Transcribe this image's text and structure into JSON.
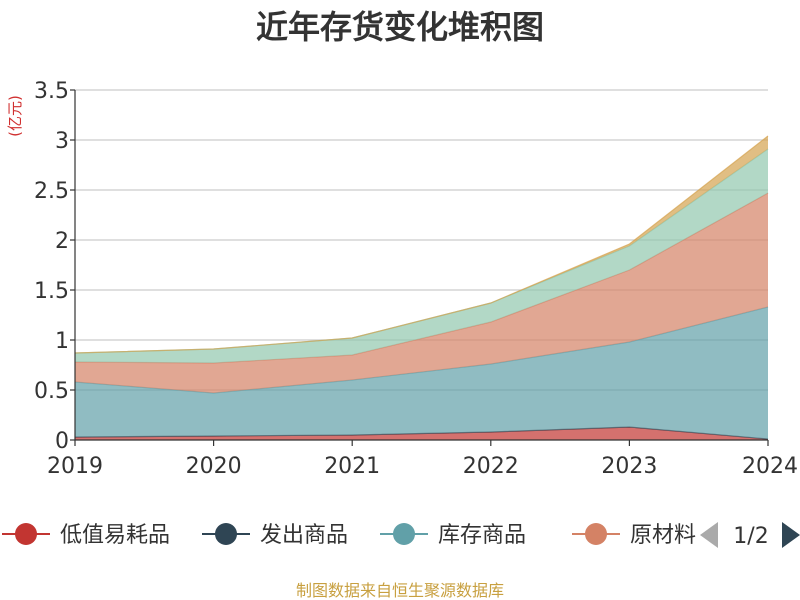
{
  "chart_data": {
    "type": "area",
    "stacked": true,
    "title": "近年存货变化堆积图",
    "unit_label": "(亿元)",
    "x": [
      "2019",
      "2020",
      "2021",
      "2022",
      "2023",
      "2024"
    ],
    "ylim": [
      0,
      3.5
    ],
    "yticks": [
      "0",
      "0.5",
      "1",
      "1.5",
      "2",
      "2.5",
      "3",
      "3.5"
    ],
    "grid": true,
    "series": [
      {
        "name": "低值易耗品",
        "color": "#c23531",
        "values": [
          0.03,
          0.04,
          0.05,
          0.08,
          0.13,
          0.01
        ]
      },
      {
        "name": "发出商品",
        "color": "#2f4554",
        "values": [
          0.0,
          0.0,
          0.0,
          0.0,
          0.0,
          0.0
        ]
      },
      {
        "name": "库存商品",
        "color": "#61a0a8",
        "values": [
          0.55,
          0.43,
          0.55,
          0.68,
          0.85,
          1.32
        ]
      },
      {
        "name": "原材料",
        "color": "#d48265",
        "values": [
          0.2,
          0.3,
          0.25,
          0.42,
          0.72,
          1.14
        ]
      },
      {
        "name": "",
        "color": "#91c7ae",
        "values": [
          0.09,
          0.14,
          0.17,
          0.19,
          0.24,
          0.44
        ]
      },
      {
        "name": "",
        "color": "#d4a24e",
        "values": [
          0.0,
          0.0,
          0.0,
          0.0,
          0.02,
          0.13
        ]
      }
    ],
    "legend": {
      "placement": "bottom",
      "items": [
        "低值易耗品",
        "发出商品",
        "库存商品",
        "原材料"
      ],
      "page": "1/2"
    }
  },
  "footer": "制图数据来自恒生聚源数据库"
}
